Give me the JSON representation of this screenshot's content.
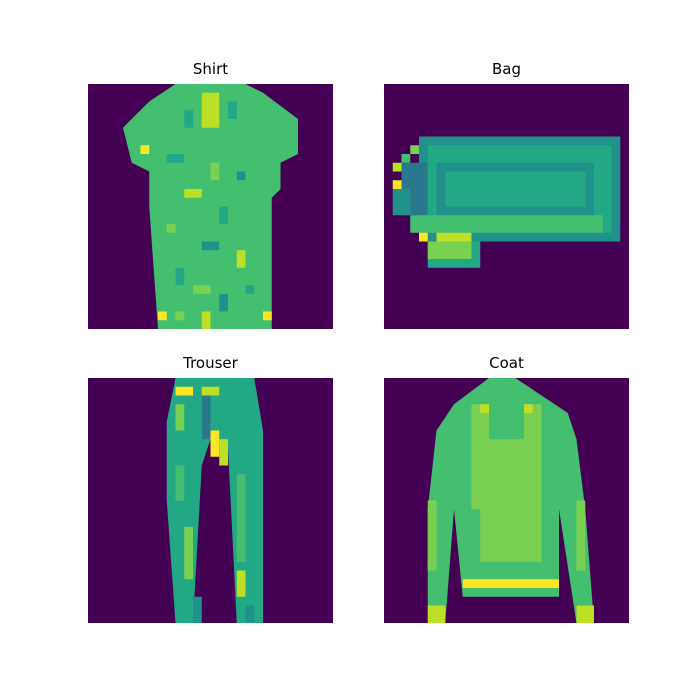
{
  "figure": {
    "colormap": "viridis",
    "background_color": "#440154",
    "panels": [
      {
        "title": "Shirt",
        "item": "shirt"
      },
      {
        "title": "Bag",
        "item": "bag"
      },
      {
        "title": "Trouser",
        "item": "trouser"
      },
      {
        "title": "Coat",
        "item": "coat"
      }
    ]
  },
  "palette": {
    "dark": "#440154",
    "teal_dark": "#2a788e",
    "teal": "#21918c",
    "green_teal": "#22a884",
    "green": "#44bf70",
    "light_green": "#7ad151",
    "yellow_green": "#bddf26",
    "yellow": "#fde725"
  }
}
